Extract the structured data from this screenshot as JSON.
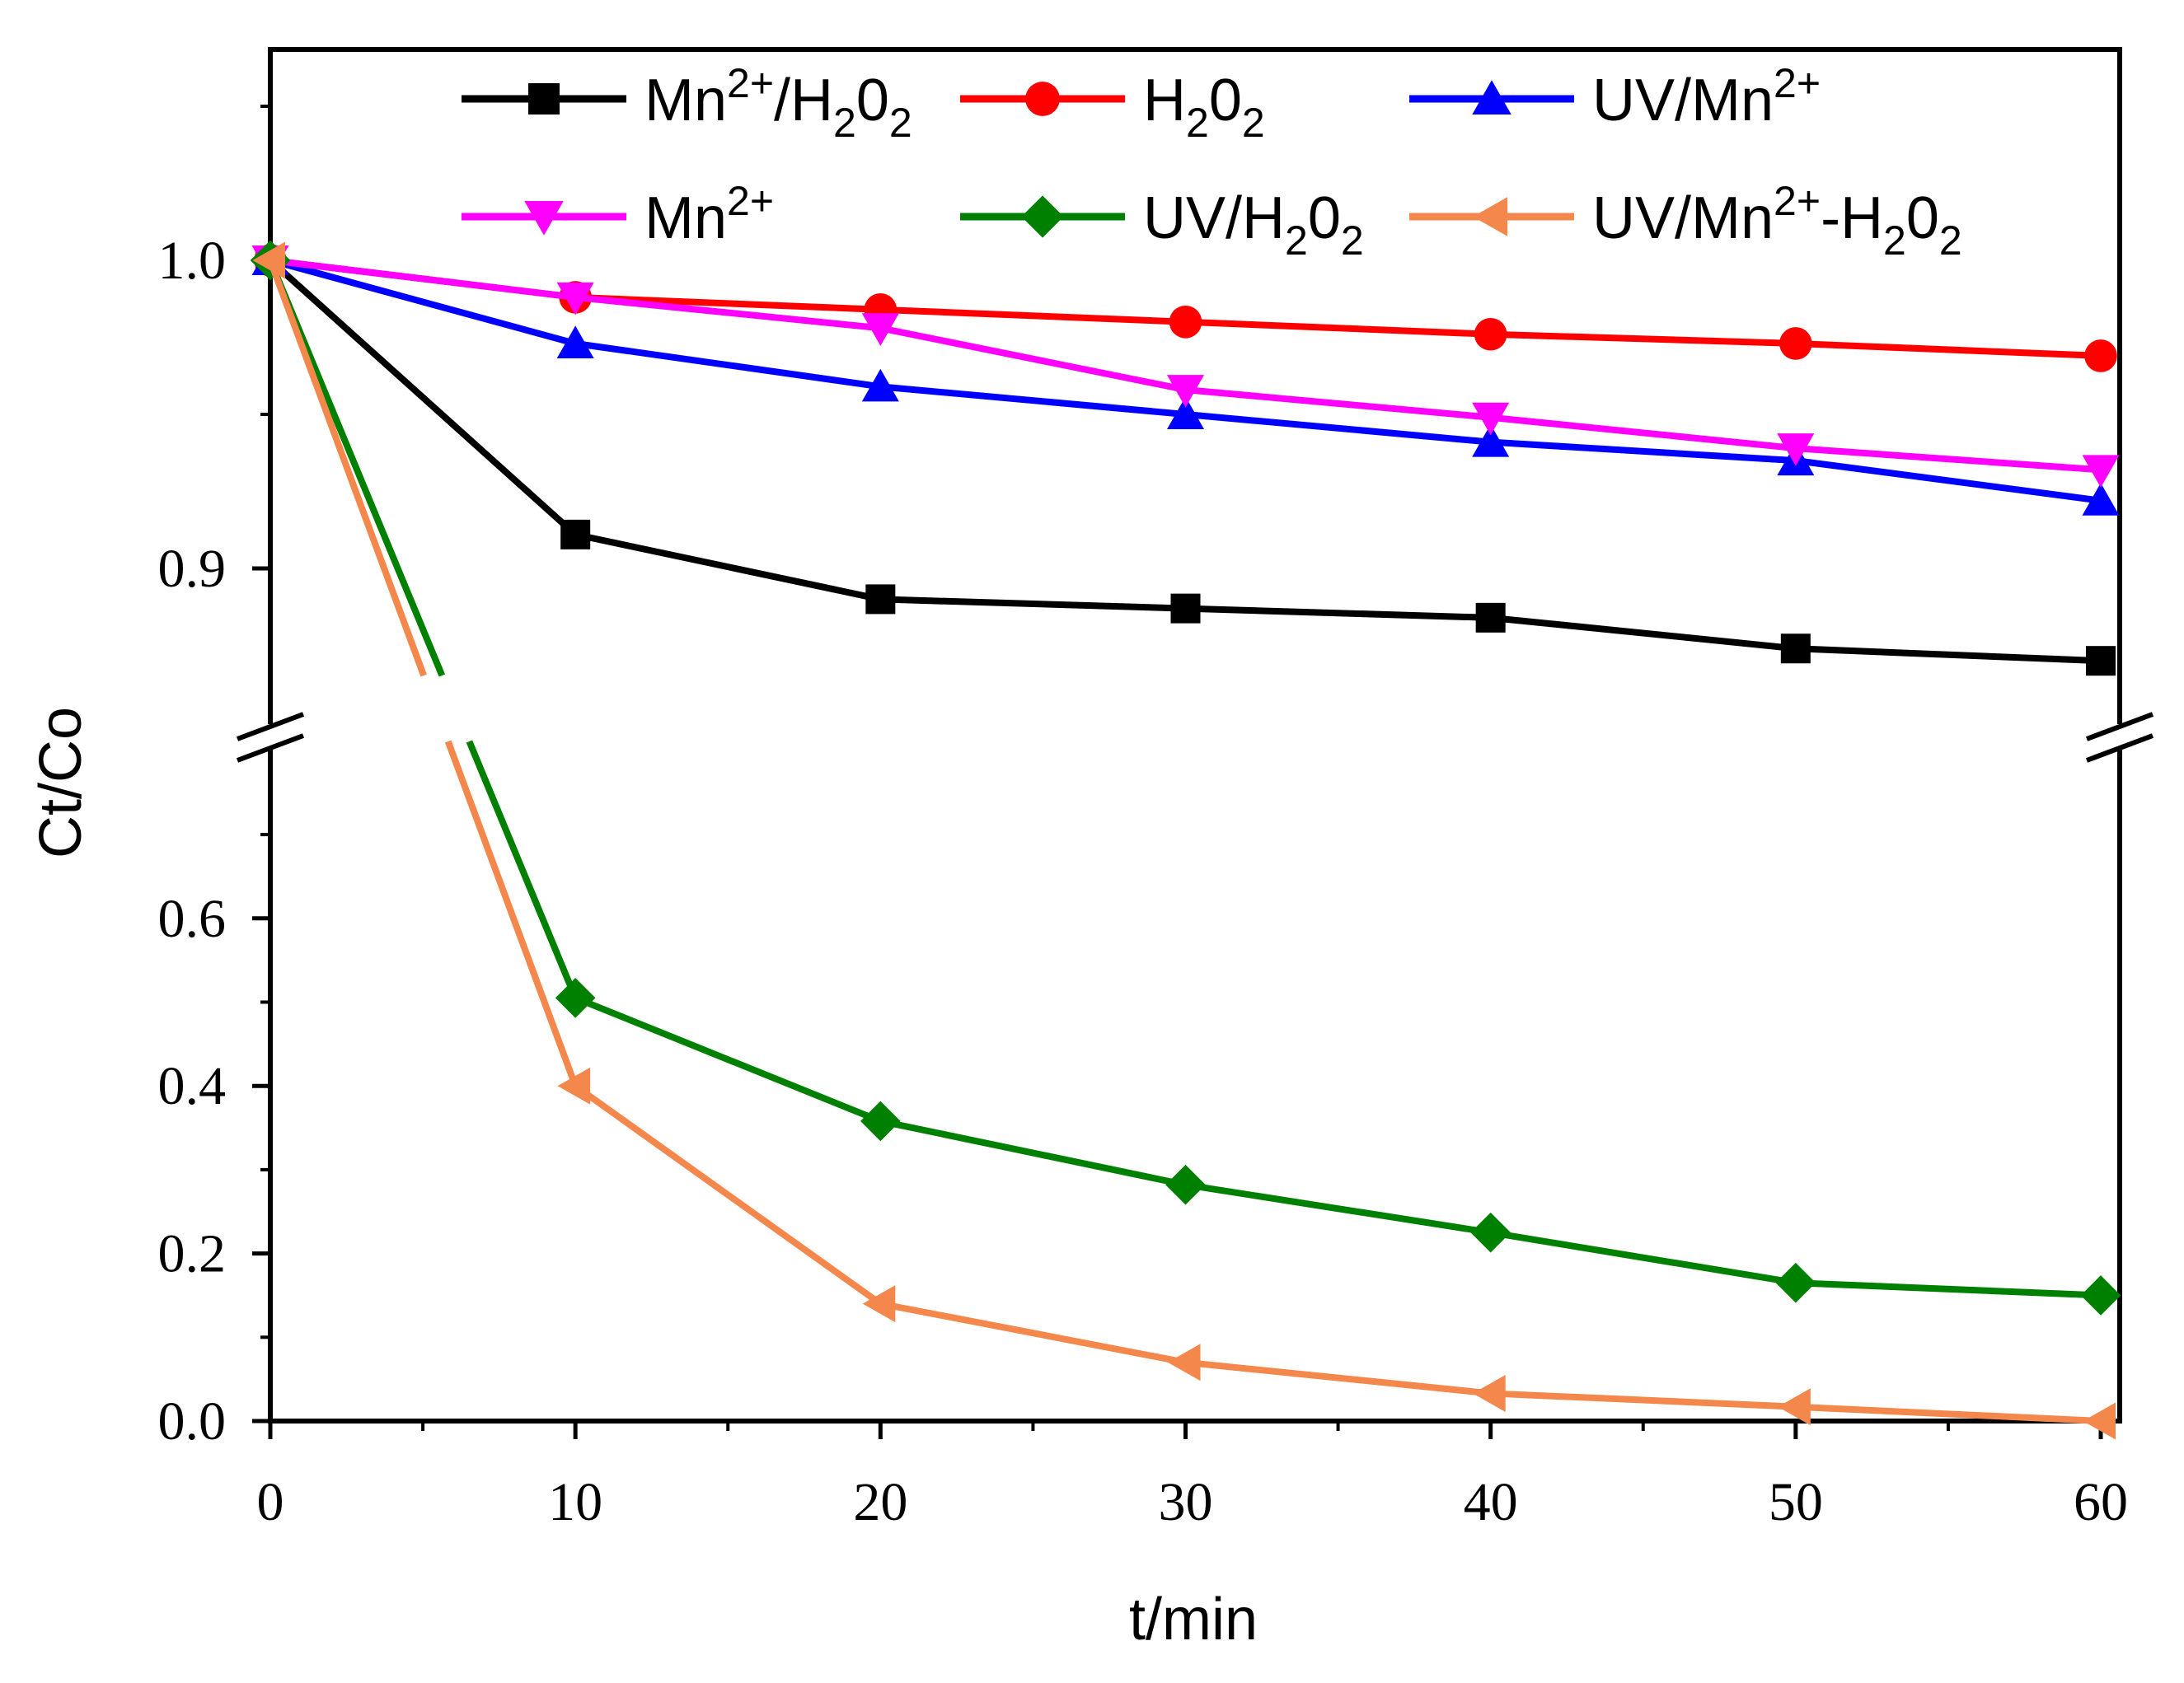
{
  "chart_data": {
    "type": "line",
    "title": "",
    "xlabel": "t/min",
    "ylabel": "Ct/Co",
    "x": [
      0,
      10,
      20,
      30,
      40,
      50,
      60
    ],
    "xlim": [
      0,
      60
    ],
    "xticks": [
      "0",
      "10",
      "20",
      "30",
      "40",
      "50",
      "60"
    ],
    "y_axis_break": {
      "lower_range": [
        0,
        0.78
      ],
      "upper_range": [
        0.86,
        1.06
      ]
    },
    "yticks_lower": [
      "0.0",
      "0.2",
      "0.4",
      "0.6"
    ],
    "yticks_upper": [
      "0.9",
      "1.0"
    ],
    "legend_position": "top",
    "series": [
      {
        "name": "Mn2+/H2O2",
        "color": "#000000",
        "marker": "square",
        "label": {
          "base": "Mn",
          "sup": "2+",
          "rest": "/H",
          "sub1": "2",
          "mid": "0",
          "sub2": "2"
        },
        "values": [
          1.0,
          0.911,
          0.89,
          0.887,
          0.884,
          0.874,
          0.87
        ]
      },
      {
        "name": "H2O2",
        "color": "#ff0000",
        "marker": "circle",
        "label": {
          "base": "H",
          "sub1": "2",
          "mid": "0",
          "sub2": "2"
        },
        "values": [
          1.0,
          0.988,
          0.984,
          0.98,
          0.976,
          0.973,
          0.969
        ]
      },
      {
        "name": "UV/Mn2+",
        "color": "#0000ff",
        "marker": "triangle-up",
        "label": {
          "base": "UV/Mn",
          "sup": "2+"
        },
        "values": [
          1.0,
          0.973,
          0.959,
          0.95,
          0.941,
          0.935,
          0.922
        ]
      },
      {
        "name": "Mn2+",
        "color": "#ff00ff",
        "marker": "triangle-down",
        "label": {
          "base": "Mn",
          "sup": "2+"
        },
        "values": [
          1.0,
          0.988,
          0.978,
          0.958,
          0.949,
          0.939,
          0.932
        ]
      },
      {
        "name": "UV/H2O2",
        "color": "#008000",
        "marker": "diamond",
        "label": {
          "base": "UV/H",
          "sub1": "2",
          "mid": "0",
          "sub2": "2"
        },
        "values": [
          1.0,
          0.505,
          0.358,
          0.282,
          0.225,
          0.165,
          0.15
        ]
      },
      {
        "name": "UV/Mn2+-H2O2",
        "color": "#f4874b",
        "marker": "triangle-left",
        "label": {
          "base": "UV/Mn",
          "sup": "2+",
          "rest": "-H",
          "sub1": "2",
          "mid": "0",
          "sub2": "2"
        },
        "values": [
          1.0,
          0.4,
          0.14,
          0.07,
          0.033,
          0.017,
          0.0
        ]
      }
    ]
  }
}
